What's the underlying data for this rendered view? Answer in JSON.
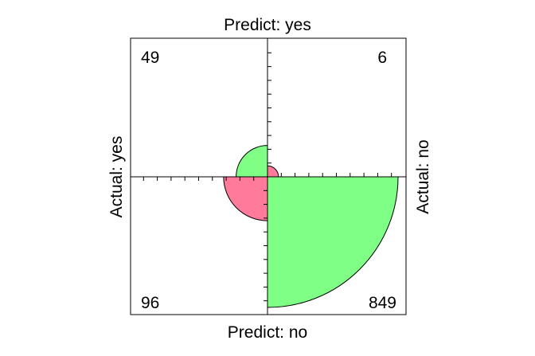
{
  "chart_data": {
    "type": "fourfold",
    "labels": {
      "top": "Predict: yes",
      "bottom": "Predict: no",
      "left": "Actual: yes",
      "right": "Actual: no"
    },
    "cells": [
      {
        "actual": "yes",
        "predict": "yes",
        "count": "49",
        "value": 49,
        "quadrant": "top-left",
        "color": "#7FFF86"
      },
      {
        "actual": "no",
        "predict": "yes",
        "count": "6",
        "value": 6,
        "quadrant": "top-right",
        "color": "#FF7A9B"
      },
      {
        "actual": "yes",
        "predict": "no",
        "count": "96",
        "value": 96,
        "quadrant": "bottom-left",
        "color": "#FF7A9B"
      },
      {
        "actual": "no",
        "predict": "no",
        "count": "849",
        "value": 849,
        "quadrant": "bottom-right",
        "color": "#7FFF86"
      }
    ],
    "grid": false,
    "axis_ticks": true
  }
}
